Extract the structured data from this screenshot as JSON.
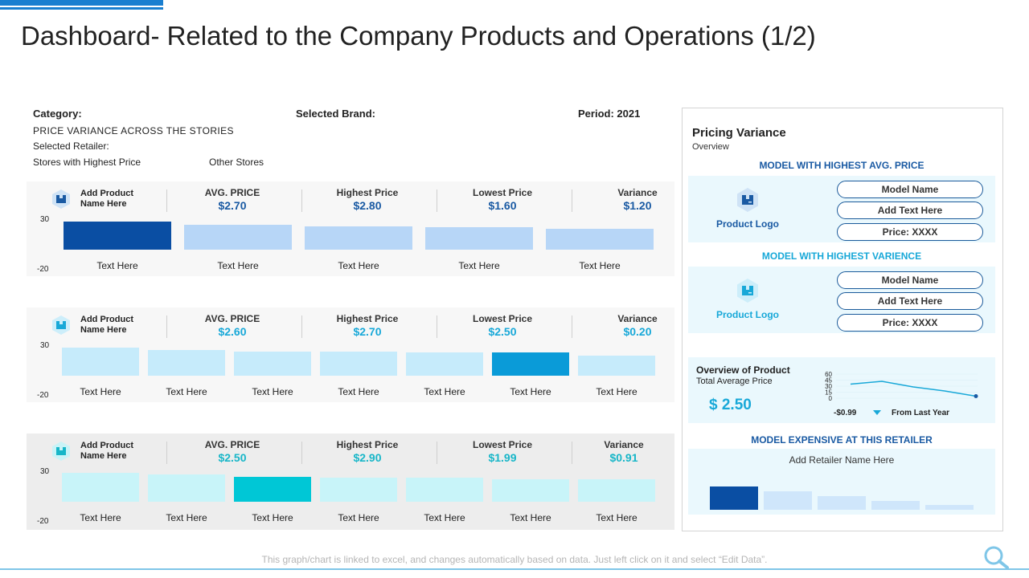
{
  "title": "Dashboard- Related to the Company Products and Operations (1/2)",
  "filters": {
    "category": "Category:",
    "selected_brand": "Selected Brand:",
    "period": "Period: 2021",
    "price_variance": "PRICE VARIANCE ACROSS THE STORIES",
    "selected_retailer": "Selected Retailer:",
    "stores_highest": "Stores with Highest Price",
    "other_stores": "Other Stores"
  },
  "rows": [
    {
      "product": "Add Product",
      "product2": "Name Here",
      "avg_label": "AVG. PRICE",
      "avg_value": "$2.70",
      "high_label": "Highest Price",
      "high_value": "$2.80",
      "low_label": "Lowest Price",
      "low_value": "$1.60",
      "var_label": "Variance",
      "var_value": "$1.20",
      "axis_top": "30",
      "axis_bottom": "-20",
      "bar_labels": [
        "Text Here",
        "Text Here",
        "Text Here",
        "Text Here",
        "Text Here"
      ],
      "bar_levels": [
        0.58,
        0.52,
        0.48,
        0.46,
        0.44
      ]
    },
    {
      "product": "Add Product",
      "product2": "Name Here",
      "avg_label": "AVG. PRICE",
      "avg_value": "$2.60",
      "high_label": "Highest Price",
      "high_value": "$2.70",
      "low_label": "Lowest Price",
      "low_value": "$2.50",
      "var_label": "Variance",
      "var_value": "$0.20",
      "axis_top": "30",
      "axis_bottom": "-20",
      "bar_labels": [
        "Text Here",
        "Text Here",
        "Text Here",
        "Text Here",
        "Text Here",
        "Text Here",
        "Text Here"
      ],
      "bar_levels": [
        0.58,
        0.54,
        0.5,
        0.5,
        0.48,
        0.48,
        0.42
      ]
    },
    {
      "product": "Add Product",
      "product2": "Name Here",
      "avg_label": "AVG. PRICE",
      "avg_value": "$2.50",
      "high_label": "Highest Price",
      "high_value": "$2.90",
      "low_label": "Lowest Price",
      "low_value": "$1.99",
      "var_label": "Variance",
      "var_value": "$0.91",
      "axis_top": "30",
      "axis_bottom": "-20",
      "bar_labels": [
        "Text Here",
        "Text Here",
        "Text Here",
        "Text Here",
        "Text Here",
        "Text Here",
        "Text Here"
      ],
      "bar_levels": [
        0.6,
        0.56,
        0.52,
        0.5,
        0.5,
        0.46,
        0.46
      ]
    }
  ],
  "right": {
    "title": "Pricing Variance",
    "subtitle": "Overview",
    "section1": "MODEL WITH HIGHEST AVG. PRICE",
    "section2": "MODEL WITH HIGHEST VARIENCE",
    "product_logo": "Product Logo",
    "pill1": "Model Name",
    "pill2": "Add Text Here",
    "pill3": "Price: XXXX",
    "overview_title": "Overview of Product",
    "overview_sub": "Total Average Price",
    "overview_value": "$ 2.50",
    "mini_ticks": [
      "60",
      "45",
      "30",
      "15",
      "0"
    ],
    "mini_series": [
      35,
      42,
      28,
      18,
      5
    ],
    "delta_value": "-$0.99",
    "delta_label": "From Last Year",
    "section3": "MODEL EXPENSIVE AT THIS RETAILER",
    "retailer": "Add Retailer Name Here",
    "retailer_bars": [
      1.0,
      0.78,
      0.6,
      0.38,
      0.2
    ]
  },
  "footer": "This graph/chart is linked to excel, and changes automatically based on data. Just left click on it and select “Edit Data”.",
  "colors": {
    "dark_blue": "#0a4ea3",
    "light_blue": "#b7d6f7",
    "mid_blue": "#0a9bd8",
    "pale_blue": "#c6ebfb",
    "teal": "#00c7d6",
    "pale_teal": "#c8f4f9",
    "value_blue": "#1a5aa3",
    "value_cyan": "#18a8d8",
    "value_teal": "#17b6c8"
  }
}
